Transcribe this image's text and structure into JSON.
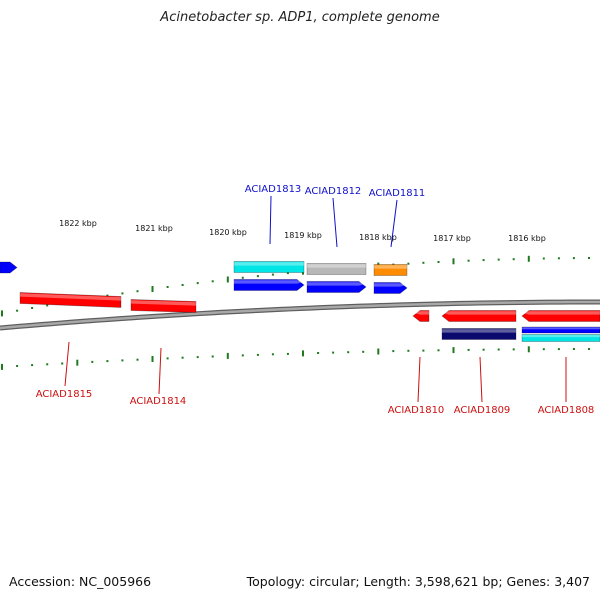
{
  "title": "Acinetobacter sp. ADP1, complete genome",
  "footer": {
    "accession": "Accession: NC_005966",
    "summary": "Topology: circular; Length: 3,598,621 bp; Genes: 3,407"
  },
  "colors": {
    "backbone": "#8c8c8c",
    "ticks": "#1f7a1f",
    "forward_label": "#1010cc",
    "reverse_label": "#cc1010",
    "cds": "#ff0000",
    "gene": "#0000ff",
    "hypothetical": "#00e5e5",
    "other": "#b8b8b8",
    "orange": "#ff8c00",
    "dark": "#0a0a6e"
  },
  "ticks": {
    "labels": [
      "1822 kbp",
      "1821 kbp",
      "1820 kbp",
      "1819 kbp",
      "1818 kbp",
      "1817 kbp",
      "1816 kbp"
    ]
  },
  "features": [
    {
      "name": "ACIAD1813",
      "strand": "forward",
      "color": "hypothetical",
      "labeled": true
    },
    {
      "name": "ACIAD1813",
      "strand": "forward",
      "color": "gene",
      "labeled": false
    },
    {
      "name": "ACIAD1812",
      "strand": "forward",
      "color": "other",
      "labeled": true
    },
    {
      "name": "ACIAD1812",
      "strand": "forward",
      "color": "gene",
      "labeled": false
    },
    {
      "name": "ACIAD1811",
      "strand": "forward",
      "color": "orange",
      "labeled": true
    },
    {
      "name": "ACIAD1811",
      "strand": "forward",
      "color": "gene",
      "labeled": false
    },
    {
      "name": "ACIAD1815",
      "strand": "reverse",
      "color": "cds",
      "labeled": true
    },
    {
      "name": "ACIAD1814",
      "strand": "reverse",
      "color": "cds",
      "labeled": true
    },
    {
      "name": "ACIAD1810",
      "strand": "reverse",
      "color": "cds",
      "labeled": true
    },
    {
      "name": "ACIAD1809",
      "strand": "reverse",
      "color": "cds",
      "labeled": true
    },
    {
      "name": "ACIAD1809",
      "strand": "reverse",
      "color": "dark",
      "labeled": false
    },
    {
      "name": "ACIAD1808",
      "strand": "reverse",
      "color": "cds",
      "labeled": true
    },
    {
      "name": "ACIAD1808",
      "strand": "reverse",
      "color": "gene",
      "labeled": false
    },
    {
      "name": "ACIAD1808",
      "strand": "reverse",
      "color": "hypothetical",
      "labeled": false
    }
  ]
}
